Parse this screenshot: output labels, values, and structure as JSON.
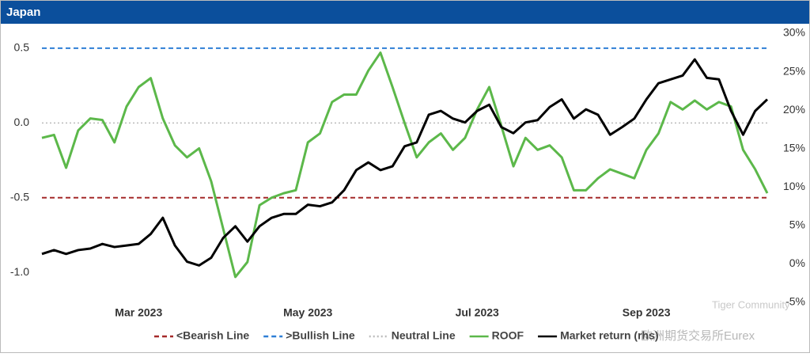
{
  "chart_data": {
    "type": "line",
    "title": "Japan",
    "categories": [
      null,
      null,
      null,
      null,
      null,
      null,
      null,
      null,
      "Mar 2023",
      null,
      null,
      null,
      null,
      null,
      null,
      null,
      null,
      null,
      null,
      null,
      null,
      null,
      "May 2023",
      null,
      null,
      null,
      null,
      null,
      null,
      null,
      null,
      null,
      null,
      null,
      null,
      null,
      "Jul 2023",
      null,
      null,
      null,
      null,
      null,
      null,
      null,
      null,
      null,
      null,
      null,
      null,
      null,
      "Sep 2023",
      null,
      null,
      null,
      null,
      null,
      null,
      null,
      null,
      null,
      null
    ],
    "series": [
      {
        "name": "ROOF",
        "color": "#5cb84a",
        "axis": "y",
        "values": [
          -0.1,
          -0.08,
          -0.3,
          -0.05,
          0.03,
          0.02,
          -0.13,
          0.11,
          0.24,
          0.3,
          0.03,
          -0.15,
          -0.23,
          -0.17,
          -0.39,
          -0.71,
          -1.03,
          -0.93,
          -0.55,
          -0.5,
          -0.47,
          -0.45,
          -0.13,
          -0.07,
          0.14,
          0.19,
          0.19,
          0.35,
          0.47,
          0.24,
          0.0,
          -0.23,
          -0.13,
          -0.07,
          -0.18,
          -0.1,
          0.09,
          0.24,
          -0.02,
          -0.29,
          -0.1,
          -0.18,
          -0.15,
          -0.23,
          -0.45,
          -0.45,
          -0.37,
          -0.31,
          -0.34,
          -0.37,
          -0.18,
          -0.07,
          0.14,
          0.09,
          0.15,
          0.09,
          0.14,
          0.11,
          -0.18,
          -0.31,
          -0.47
        ]
      },
      {
        "name": "Market return (rhs)",
        "color": "#000000",
        "axis": "y2",
        "values": [
          1.3,
          1.8,
          1.3,
          1.8,
          2.0,
          2.6,
          2.2,
          2.4,
          2.6,
          3.9,
          6.0,
          2.4,
          0.3,
          -0.2,
          0.8,
          3.4,
          4.9,
          2.9,
          4.9,
          6.0,
          6.5,
          6.5,
          7.7,
          7.5,
          8.0,
          9.6,
          12.2,
          13.2,
          12.2,
          12.7,
          15.3,
          15.8,
          19.4,
          19.9,
          18.9,
          18.4,
          19.9,
          20.7,
          17.8,
          17.0,
          18.4,
          18.7,
          20.4,
          21.4,
          18.9,
          20.1,
          19.4,
          16.8,
          17.8,
          18.9,
          21.4,
          23.5,
          24.0,
          24.5,
          26.6,
          24.2,
          24.0,
          19.9,
          16.8,
          19.9,
          21.4
        ]
      }
    ],
    "reference_lines": [
      {
        "name": "<Bearish Line",
        "value": -0.5,
        "color": "#a52a2a",
        "style": "dashed"
      },
      {
        "name": ">Bullish Line",
        "value": 0.5,
        "color": "#2f7fd6",
        "style": "dashed"
      },
      {
        "name": "Neutral Line",
        "value": 0,
        "color": "#bbbbbb",
        "style": "dotted"
      }
    ],
    "ylim": [
      -1.2,
      0.6
    ],
    "yticks": [
      {
        "value": 0.5,
        "label": "0.5"
      },
      {
        "value": 0,
        "label": "0.0"
      },
      {
        "value": -0.5,
        "label": "-0.5"
      },
      {
        "value": -1,
        "label": "-1.0"
      }
    ],
    "y2lim": [
      -5,
      30
    ],
    "y2ticks": [
      {
        "value": 30,
        "label": "30%"
      },
      {
        "value": 25,
        "label": "25%"
      },
      {
        "value": 20,
        "label": "20%"
      },
      {
        "value": 15,
        "label": "15%"
      },
      {
        "value": 10,
        "label": "10%"
      },
      {
        "value": 5,
        "label": "5%"
      },
      {
        "value": 0,
        "label": "0%"
      },
      {
        "value": -5,
        "label": "-5%"
      }
    ],
    "legend": "bottom",
    "watermark": [
      "Tiger Community",
      "欧洲期货交易所Eurex"
    ]
  }
}
